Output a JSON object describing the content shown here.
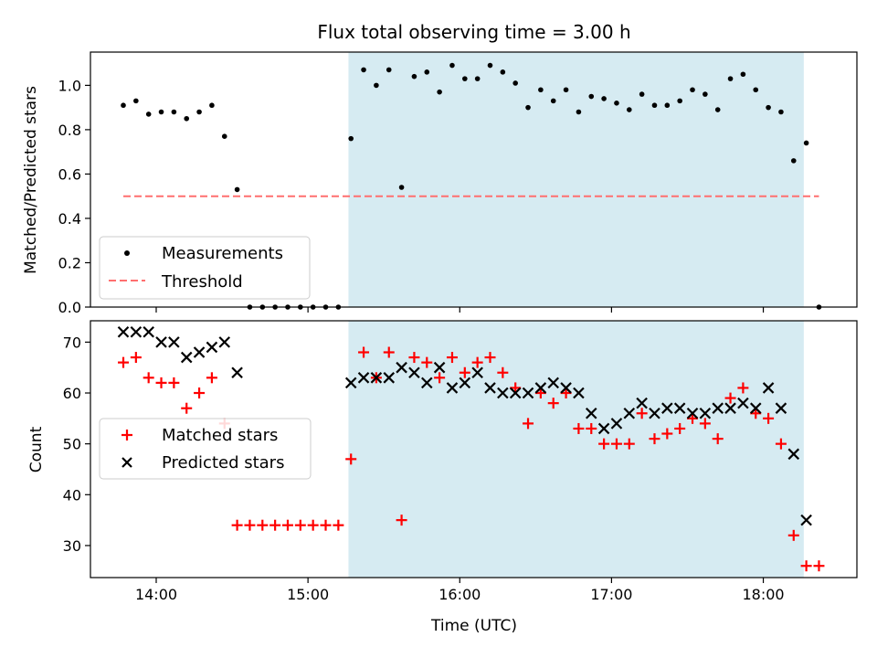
{
  "title": "Flux total observing time = 3.00 h",
  "xlabel": "Time (UTC)",
  "chart_data": [
    {
      "type": "scatter",
      "ylabel": "Matched/Predicted stars",
      "xlim": [
        "13:34",
        "18:37"
      ],
      "ylim": [
        0,
        1.15
      ],
      "yticks": [
        0.0,
        0.2,
        0.4,
        0.6,
        0.8,
        1.0
      ],
      "ytick_labels": [
        "0.0",
        "0.2",
        "0.4",
        "0.6",
        "0.8",
        "1.0"
      ],
      "shaded_region": {
        "x": [
          "15:16",
          "18:16"
        ],
        "color": "#add8e6"
      },
      "legend": {
        "placement": "lower left",
        "entries": [
          "Measurements",
          "Threshold"
        ]
      },
      "series": [
        {
          "name": "Measurements",
          "marker": "dot",
          "color": "#000000",
          "x": [
            "13:47",
            "13:52",
            "13:57",
            "14:02",
            "14:07",
            "14:12",
            "14:17",
            "14:22",
            "14:27",
            "14:32",
            "14:37",
            "14:42",
            "14:47",
            "14:52",
            "14:57",
            "15:02",
            "15:07",
            "15:12",
            "15:17",
            "15:22",
            "15:27",
            "15:32",
            "15:37",
            "15:42",
            "15:47",
            "15:52",
            "15:57",
            "16:02",
            "16:07",
            "16:12",
            "16:17",
            "16:22",
            "16:27",
            "16:32",
            "16:37",
            "16:42",
            "16:47",
            "16:52",
            "16:57",
            "17:02",
            "17:07",
            "17:12",
            "17:17",
            "17:22",
            "17:27",
            "17:32",
            "17:37",
            "17:42",
            "17:47",
            "17:52",
            "17:57",
            "18:02",
            "18:07",
            "18:12",
            "18:17",
            "18:22"
          ],
          "y": [
            0.91,
            0.93,
            0.87,
            0.88,
            0.88,
            0.85,
            0.88,
            0.91,
            0.77,
            0.53,
            0.0,
            0.0,
            0.0,
            0.0,
            0.0,
            0.0,
            0.0,
            0.0,
            0.76,
            1.07,
            1.0,
            1.07,
            0.54,
            1.04,
            1.06,
            0.97,
            1.09,
            1.03,
            1.03,
            1.09,
            1.06,
            1.01,
            0.9,
            0.98,
            0.93,
            0.98,
            0.88,
            0.95,
            0.94,
            0.92,
            0.89,
            0.96,
            0.91,
            0.91,
            0.93,
            0.98,
            0.96,
            0.89,
            1.03,
            1.05,
            0.98,
            0.9,
            0.88,
            0.66,
            0.74,
            0.0
          ]
        },
        {
          "name": "Threshold",
          "style": "dashed",
          "color": "#ff6f6f",
          "x": [
            "13:47",
            "18:22"
          ],
          "y": [
            0.5,
            0.5
          ]
        }
      ]
    },
    {
      "type": "scatter",
      "ylabel": "Count",
      "xlim": [
        "13:34",
        "18:37"
      ],
      "ylim": [
        23.7,
        74.2
      ],
      "yticks": [
        30,
        40,
        50,
        60,
        70
      ],
      "ytick_labels": [
        "30",
        "40",
        "50",
        "60",
        "70"
      ],
      "xtick_labels": [
        "14:00",
        "15:00",
        "16:00",
        "17:00",
        "18:00"
      ],
      "shaded_region": {
        "x": [
          "15:16",
          "18:16"
        ],
        "color": "#add8e6"
      },
      "legend": {
        "placement": "center left",
        "entries": [
          "Matched stars",
          "Predicted stars"
        ]
      },
      "series": [
        {
          "name": "Matched stars",
          "marker": "plus",
          "color": "#ff0000",
          "x": [
            "13:47",
            "13:52",
            "13:57",
            "14:02",
            "14:07",
            "14:12",
            "14:17",
            "14:22",
            "14:27",
            "14:32",
            "14:37",
            "14:42",
            "14:47",
            "14:52",
            "14:57",
            "15:02",
            "15:07",
            "15:12",
            "15:17",
            "15:22",
            "15:27",
            "15:32",
            "15:37",
            "15:42",
            "15:47",
            "15:52",
            "15:57",
            "16:02",
            "16:07",
            "16:12",
            "16:17",
            "16:22",
            "16:27",
            "16:32",
            "16:37",
            "16:42",
            "16:47",
            "16:52",
            "16:57",
            "17:02",
            "17:07",
            "17:12",
            "17:17",
            "17:22",
            "17:27",
            "17:32",
            "17:37",
            "17:42",
            "17:47",
            "17:52",
            "17:57",
            "18:02",
            "18:07",
            "18:12",
            "18:17",
            "18:22"
          ],
          "y": [
            66,
            67,
            63,
            62,
            62,
            57,
            60,
            63,
            54,
            34,
            34,
            34,
            34,
            34,
            34,
            34,
            34,
            34,
            47,
            68,
            63,
            68,
            35,
            67,
            66,
            63,
            67,
            64,
            66,
            67,
            64,
            61,
            54,
            60,
            58,
            60,
            53,
            53,
            50,
            50,
            50,
            56,
            51,
            52,
            53,
            55,
            54,
            51,
            59,
            61,
            56,
            55,
            50,
            32,
            26,
            26
          ]
        },
        {
          "name": "Predicted stars",
          "marker": "x",
          "color": "#000000",
          "x": [
            "13:47",
            "13:52",
            "13:57",
            "14:02",
            "14:07",
            "14:12",
            "14:17",
            "14:22",
            "14:27",
            "14:32",
            "15:17",
            "15:22",
            "15:27",
            "15:32",
            "15:37",
            "15:42",
            "15:47",
            "15:52",
            "15:57",
            "16:02",
            "16:07",
            "16:12",
            "16:17",
            "16:22",
            "16:27",
            "16:32",
            "16:37",
            "16:42",
            "16:47",
            "16:52",
            "16:57",
            "17:02",
            "17:07",
            "17:12",
            "17:17",
            "17:22",
            "17:27",
            "17:32",
            "17:37",
            "17:42",
            "17:47",
            "17:52",
            "17:57",
            "18:02",
            "18:07",
            "18:12",
            "18:17"
          ],
          "y": [
            72,
            72,
            72,
            70,
            70,
            67,
            68,
            69,
            70,
            64,
            62,
            63,
            63,
            63,
            65,
            64,
            62,
            65,
            61,
            62,
            64,
            61,
            60,
            60,
            60,
            61,
            62,
            61,
            60,
            56,
            53,
            54,
            56,
            58,
            56,
            57,
            57,
            56,
            56,
            57,
            57,
            58,
            57,
            61,
            57,
            48,
            35
          ]
        }
      ]
    }
  ]
}
